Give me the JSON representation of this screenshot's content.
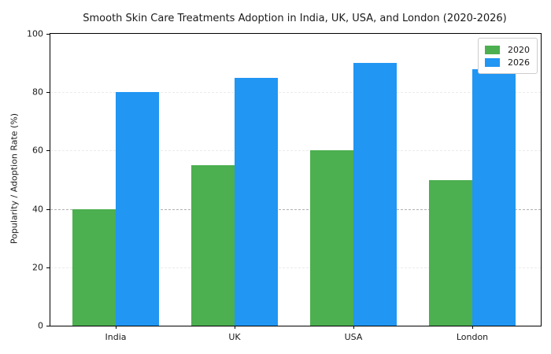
{
  "chart_data": {
    "type": "bar",
    "title": "Smooth Skin Care Treatments Adoption in India, UK, USA, and London (2020-2026)",
    "ylabel": "Popularity / Adoption Rate (%)",
    "xlabel": "",
    "categories": [
      "India",
      "UK",
      "USA",
      "London"
    ],
    "series": [
      {
        "name": "2020",
        "color": "#4caf50",
        "values": [
          40,
          55,
          60,
          50
        ]
      },
      {
        "name": "2026",
        "color": "#2196f3",
        "values": [
          80,
          85,
          90,
          88
        ]
      }
    ],
    "ylim": [
      0,
      100
    ],
    "yticks": [
      0,
      20,
      40,
      60,
      80,
      100
    ],
    "grid": {
      "axis": "y",
      "style": "dashed",
      "color": "#ebebeb"
    },
    "reference_line": {
      "y": 40,
      "style": "dashed",
      "color": "#b0b0b0"
    },
    "legend": {
      "position": "upper right",
      "entries": [
        "2020",
        "2026"
      ]
    },
    "background": "#ffffff"
  }
}
